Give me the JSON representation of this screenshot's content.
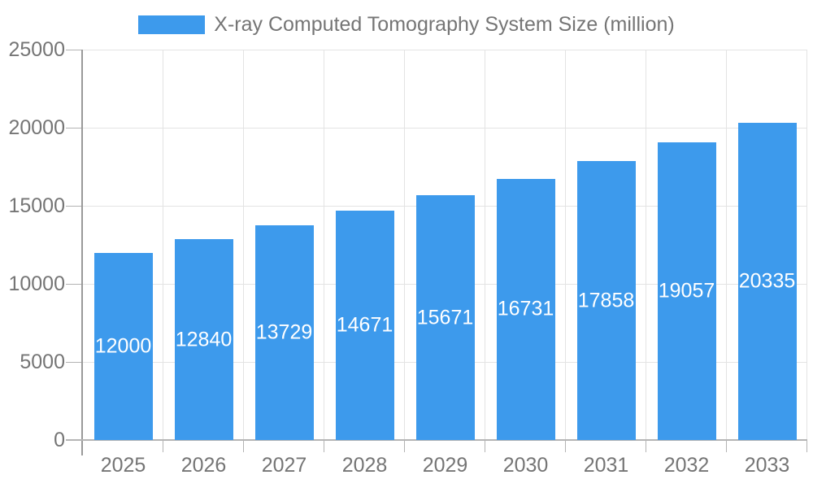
{
  "chart_data": {
    "type": "bar",
    "title": "X-ray Computed Tomography System Size (million)",
    "categories": [
      "2025",
      "2026",
      "2027",
      "2028",
      "2029",
      "2030",
      "2031",
      "2032",
      "2033"
    ],
    "values": [
      12000,
      12840,
      13729,
      14671,
      15671,
      16731,
      17858,
      19057,
      20335
    ],
    "xlabel": "",
    "ylabel": "",
    "ylim": [
      0,
      25000
    ],
    "yticks": [
      0,
      5000,
      10000,
      15000,
      20000,
      25000
    ],
    "grid": true,
    "legend_position": "top",
    "bar_labels_inside": true,
    "colors": {
      "bar": "#3D9AEC",
      "bar_label": "#FFFFFF",
      "axis_text": "#757575",
      "grid_line": "#E3E3E3",
      "y_axis_line": "#999999",
      "x_axis_line": "#B5B5B5",
      "tick_line": "#B3B3B3",
      "background": "#FFFFFF"
    }
  }
}
